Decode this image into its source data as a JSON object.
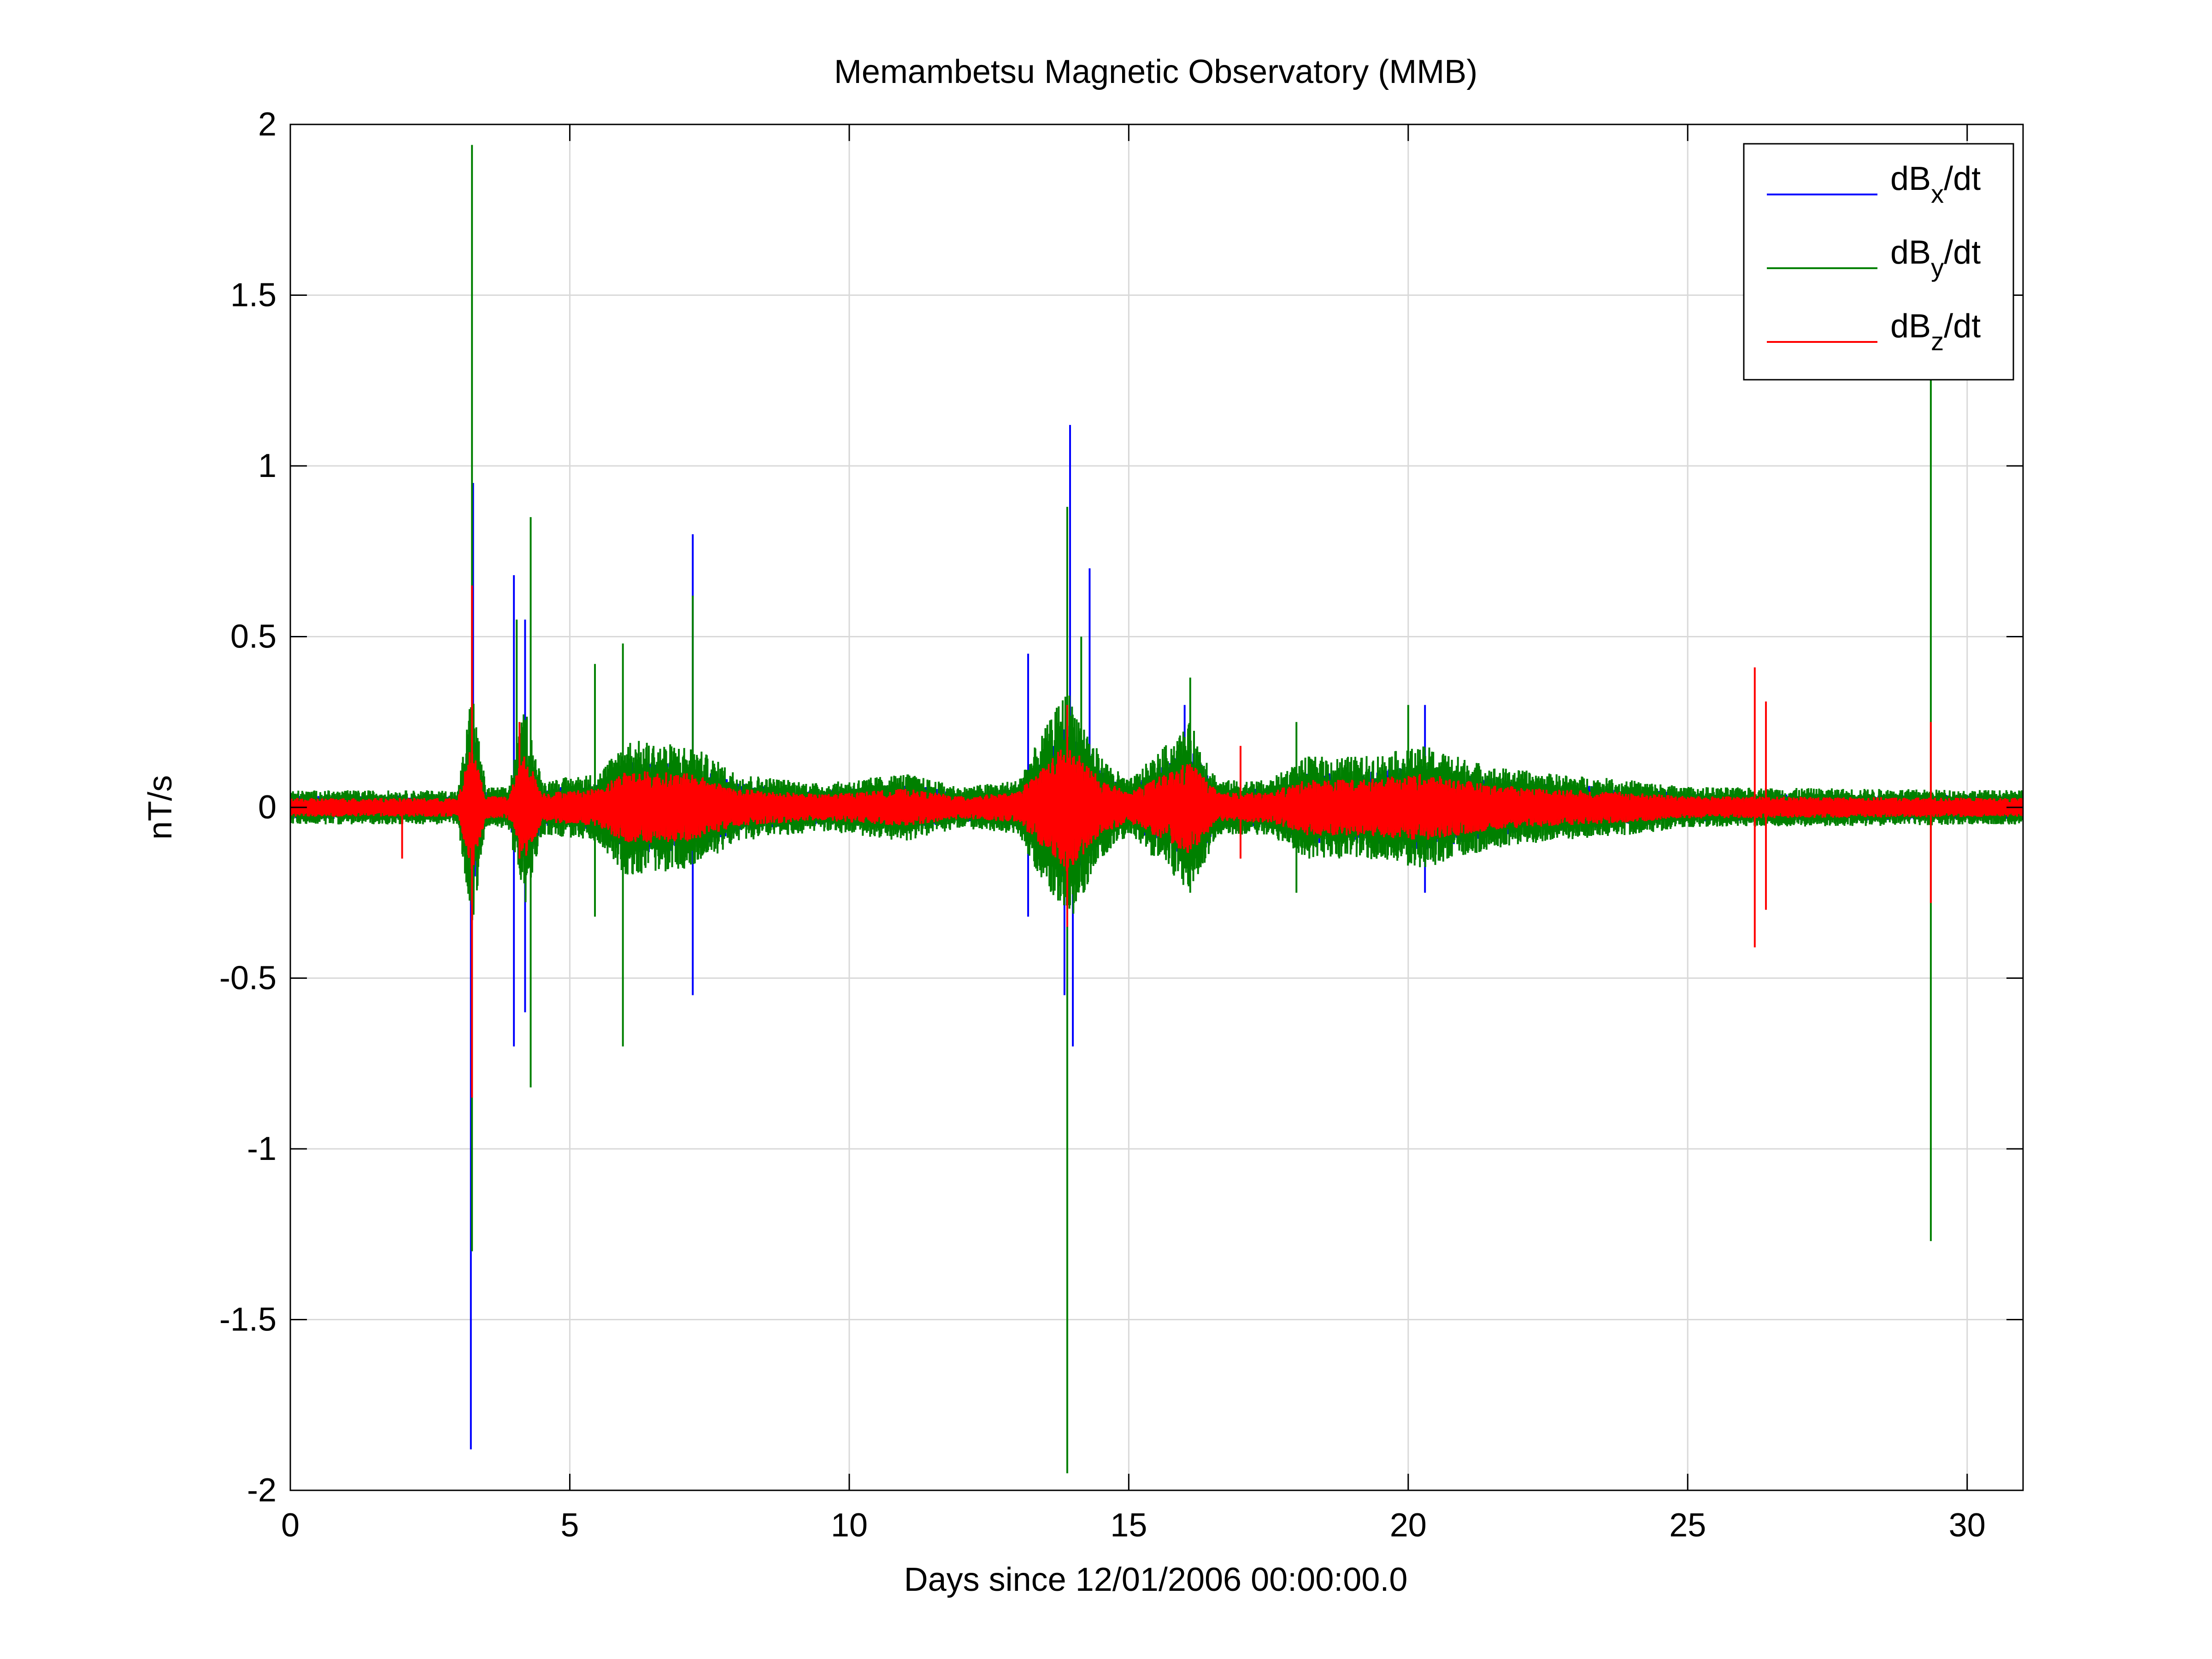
{
  "chart_data": {
    "type": "line",
    "title": "Memambetsu Magnetic Observatory (MMB)",
    "xlabel": "Days since 12/01/2006 00:00:00.0",
    "ylabel": "nT/s",
    "xlim": [
      0,
      31
    ],
    "ylim": [
      -2,
      2
    ],
    "xticks": [
      0,
      5,
      10,
      15,
      20,
      25,
      30
    ],
    "yticks": [
      -2,
      -1.5,
      -1,
      -0.5,
      0,
      0.5,
      1,
      1.5,
      2
    ],
    "xtick_labels": [
      "0",
      "5",
      "10",
      "15",
      "20",
      "25",
      "30"
    ],
    "ytick_labels": [
      "-2",
      "-1.5",
      "-1",
      "-0.5",
      "0",
      "0.5",
      "1",
      "1.5",
      "2"
    ],
    "grid": true,
    "legend_position": "top-right",
    "background_noise_amplitude": 0.05,
    "series": [
      {
        "name": "dBx/dt",
        "legend": {
          "base": "dB",
          "sub": "x",
          "suffix": "/dt"
        },
        "color": "#0000ff",
        "spikes": [
          {
            "x": 3.23,
            "y": -1.88
          },
          {
            "x": 3.27,
            "y": 0.95
          },
          {
            "x": 4.0,
            "y": 0.68
          },
          {
            "x": 4.0,
            "y": -0.7
          },
          {
            "x": 4.2,
            "y": -0.6
          },
          {
            "x": 4.2,
            "y": 0.55
          },
          {
            "x": 7.2,
            "y": 0.8
          },
          {
            "x": 7.2,
            "y": -0.55
          },
          {
            "x": 13.2,
            "y": 0.45
          },
          {
            "x": 13.2,
            "y": -0.32
          },
          {
            "x": 13.85,
            "y": -0.55
          },
          {
            "x": 13.95,
            "y": 1.12
          },
          {
            "x": 14.0,
            "y": -0.7
          },
          {
            "x": 14.3,
            "y": 0.7
          },
          {
            "x": 16.0,
            "y": 0.3
          },
          {
            "x": 20.3,
            "y": 0.3
          },
          {
            "x": 20.3,
            "y": -0.25
          }
        ]
      },
      {
        "name": "dBy/dt",
        "legend": {
          "base": "dB",
          "sub": "y",
          "suffix": "/dt"
        },
        "color": "#008000",
        "spikes": [
          {
            "x": 3.25,
            "y": 1.94
          },
          {
            "x": 3.25,
            "y": -1.3
          },
          {
            "x": 4.05,
            "y": 0.55
          },
          {
            "x": 4.3,
            "y": 0.85
          },
          {
            "x": 4.3,
            "y": -0.82
          },
          {
            "x": 5.45,
            "y": 0.42
          },
          {
            "x": 5.45,
            "y": -0.32
          },
          {
            "x": 5.95,
            "y": 0.48
          },
          {
            "x": 5.95,
            "y": -0.7
          },
          {
            "x": 7.2,
            "y": 0.62
          },
          {
            "x": 13.9,
            "y": -1.95
          },
          {
            "x": 13.9,
            "y": 0.88
          },
          {
            "x": 14.15,
            "y": 0.5
          },
          {
            "x": 16.1,
            "y": 0.38
          },
          {
            "x": 16.1,
            "y": -0.25
          },
          {
            "x": 18.0,
            "y": 0.25
          },
          {
            "x": 18.0,
            "y": -0.25
          },
          {
            "x": 20.0,
            "y": 0.3
          },
          {
            "x": 29.35,
            "y": 1.27
          },
          {
            "x": 29.35,
            "y": -1.27
          }
        ]
      },
      {
        "name": "dBz/dt",
        "legend": {
          "base": "dB",
          "sub": "z",
          "suffix": "/dt"
        },
        "color": "#ff0000",
        "spikes": [
          {
            "x": 2.0,
            "y": -0.15
          },
          {
            "x": 3.25,
            "y": 0.65
          },
          {
            "x": 3.25,
            "y": -0.85
          },
          {
            "x": 4.1,
            "y": 0.25
          },
          {
            "x": 4.1,
            "y": -0.15
          },
          {
            "x": 13.9,
            "y": 0.3
          },
          {
            "x": 13.9,
            "y": -0.35
          },
          {
            "x": 17.0,
            "y": 0.18
          },
          {
            "x": 17.0,
            "y": -0.15
          },
          {
            "x": 26.2,
            "y": 0.41
          },
          {
            "x": 26.2,
            "y": -0.41
          },
          {
            "x": 26.4,
            "y": 0.31
          },
          {
            "x": 26.4,
            "y": -0.3
          },
          {
            "x": 29.35,
            "y": 0.25
          },
          {
            "x": 29.35,
            "y": -0.28
          }
        ]
      }
    ],
    "activity_envelope": [
      {
        "x": 0,
        "a": 0.05
      },
      {
        "x": 3.0,
        "a": 0.05
      },
      {
        "x": 3.25,
        "a": 0.35
      },
      {
        "x": 3.5,
        "a": 0.06
      },
      {
        "x": 3.9,
        "a": 0.06
      },
      {
        "x": 4.2,
        "a": 0.3
      },
      {
        "x": 4.5,
        "a": 0.08
      },
      {
        "x": 5.5,
        "a": 0.1
      },
      {
        "x": 6.0,
        "a": 0.2
      },
      {
        "x": 7.2,
        "a": 0.18
      },
      {
        "x": 8.0,
        "a": 0.1
      },
      {
        "x": 9.5,
        "a": 0.07
      },
      {
        "x": 11.0,
        "a": 0.1
      },
      {
        "x": 12.0,
        "a": 0.06
      },
      {
        "x": 13.0,
        "a": 0.08
      },
      {
        "x": 13.9,
        "a": 0.35
      },
      {
        "x": 14.5,
        "a": 0.15
      },
      {
        "x": 15.0,
        "a": 0.08
      },
      {
        "x": 16.1,
        "a": 0.25
      },
      {
        "x": 16.6,
        "a": 0.08
      },
      {
        "x": 17.5,
        "a": 0.08
      },
      {
        "x": 18.2,
        "a": 0.15
      },
      {
        "x": 19.2,
        "a": 0.15
      },
      {
        "x": 20.3,
        "a": 0.18
      },
      {
        "x": 21.5,
        "a": 0.12
      },
      {
        "x": 22.5,
        "a": 0.1
      },
      {
        "x": 24.0,
        "a": 0.08
      },
      {
        "x": 25.0,
        "a": 0.06
      },
      {
        "x": 31.0,
        "a": 0.05
      }
    ]
  }
}
